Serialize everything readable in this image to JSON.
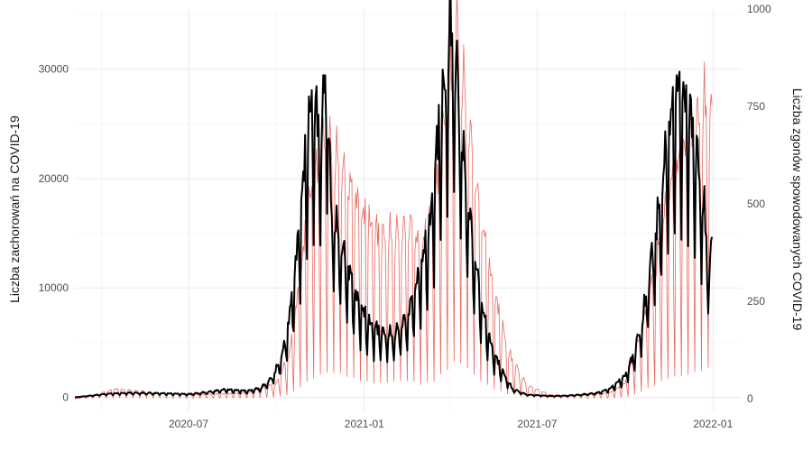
{
  "chart_data": {
    "type": "line",
    "title": "",
    "grid": true,
    "legend": "none",
    "x_axis": {
      "type": "date",
      "range": [
        "2020-03-04",
        "2022-01-31"
      ],
      "ticks": [
        {
          "value": "2020-07-01",
          "label": "2020-07"
        },
        {
          "value": "2021-01-01",
          "label": "2021-01"
        },
        {
          "value": "2021-07-01",
          "label": "2021-07"
        },
        {
          "value": "2022-01-01",
          "label": "2022-01"
        }
      ]
    },
    "y_left": {
      "label": "Liczba zachorowań na COVID-19",
      "range": [
        -1200,
        35500
      ],
      "ticks": [
        0,
        10000,
        20000,
        30000
      ],
      "tick_labels": [
        "0",
        "10000",
        "20000",
        "30000"
      ]
    },
    "y_right": {
      "label": "Liczba zgonów spowodowanych COVID-19",
      "range": [
        -30,
        1000
      ],
      "ticks": [
        0,
        250,
        500,
        750,
        1000
      ],
      "tick_labels": [
        "0",
        "250",
        "500",
        "750",
        "1000"
      ]
    },
    "series": [
      {
        "axis": "left",
        "color": "#000000",
        "weekly_dip": 0.45,
        "points": [
          [
            "2020-03-04",
            0
          ],
          [
            "2020-03-20",
            150
          ],
          [
            "2020-04-10",
            350
          ],
          [
            "2020-05-01",
            420
          ],
          [
            "2020-06-01",
            380
          ],
          [
            "2020-07-01",
            300
          ],
          [
            "2020-07-20",
            480
          ],
          [
            "2020-08-08",
            730
          ],
          [
            "2020-09-01",
            600
          ],
          [
            "2020-09-15",
            900
          ],
          [
            "2020-09-25",
            1700
          ],
          [
            "2020-10-03",
            3000
          ],
          [
            "2020-10-10",
            5000
          ],
          [
            "2020-10-17",
            9000
          ],
          [
            "2020-10-24",
            15000
          ],
          [
            "2020-10-31",
            22000
          ],
          [
            "2020-11-07",
            27800
          ],
          [
            "2020-11-14",
            25500
          ],
          [
            "2020-11-18",
            25000
          ],
          [
            "2020-11-22",
            32700
          ],
          [
            "2020-11-27",
            18000
          ],
          [
            "2020-12-05",
            15000
          ],
          [
            "2020-12-15",
            12000
          ],
          [
            "2020-12-25",
            9000
          ],
          [
            "2021-01-05",
            7000
          ],
          [
            "2021-01-20",
            6000
          ],
          [
            "2021-02-01",
            5800
          ],
          [
            "2021-02-15",
            7500
          ],
          [
            "2021-03-01",
            12000
          ],
          [
            "2021-03-10",
            15500
          ],
          [
            "2021-03-20",
            25000
          ],
          [
            "2021-03-28",
            30000
          ],
          [
            "2021-04-01",
            35200
          ],
          [
            "2021-04-08",
            30000
          ],
          [
            "2021-04-15",
            22000
          ],
          [
            "2021-04-25",
            14000
          ],
          [
            "2021-05-05",
            8000
          ],
          [
            "2021-05-15",
            4500
          ],
          [
            "2021-05-25",
            2500
          ],
          [
            "2021-06-05",
            800
          ],
          [
            "2021-06-20",
            250
          ],
          [
            "2021-07-15",
            120
          ],
          [
            "2021-08-01",
            150
          ],
          [
            "2021-08-15",
            250
          ],
          [
            "2021-09-01",
            400
          ],
          [
            "2021-09-15",
            800
          ],
          [
            "2021-10-01",
            2000
          ],
          [
            "2021-10-10",
            4000
          ],
          [
            "2021-10-20",
            7500
          ],
          [
            "2021-10-31",
            14500
          ],
          [
            "2021-11-07",
            18000
          ],
          [
            "2021-11-14",
            24000
          ],
          [
            "2021-11-21",
            27000
          ],
          [
            "2021-11-25",
            28900
          ],
          [
            "2021-12-02",
            27500
          ],
          [
            "2021-12-09",
            26000
          ],
          [
            "2021-12-16",
            22000
          ],
          [
            "2021-12-23",
            17000
          ],
          [
            "2021-12-28",
            12000
          ],
          [
            "2021-12-31",
            14000
          ]
        ]
      },
      {
        "axis": "right",
        "color": "#e8685e",
        "weekly_dip": 0.9,
        "points": [
          [
            "2020-03-04",
            0
          ],
          [
            "2020-03-25",
            10
          ],
          [
            "2020-04-15",
            25
          ],
          [
            "2020-05-01",
            22
          ],
          [
            "2020-06-01",
            15
          ],
          [
            "2020-07-01",
            10
          ],
          [
            "2020-08-01",
            12
          ],
          [
            "2020-09-01",
            15
          ],
          [
            "2020-10-01",
            40
          ],
          [
            "2020-10-15",
            120
          ],
          [
            "2020-10-25",
            300
          ],
          [
            "2020-11-05",
            520
          ],
          [
            "2020-11-20",
            670
          ],
          [
            "2020-12-01",
            640
          ],
          [
            "2020-12-15",
            560
          ],
          [
            "2021-01-01",
            470
          ],
          [
            "2021-01-20",
            420
          ],
          [
            "2021-02-05",
            430
          ],
          [
            "2021-02-20",
            450
          ],
          [
            "2021-03-01",
            380
          ],
          [
            "2021-03-15",
            500
          ],
          [
            "2021-03-25",
            700
          ],
          [
            "2021-04-08",
            960
          ],
          [
            "2021-04-20",
            720
          ],
          [
            "2021-05-01",
            500
          ],
          [
            "2021-05-15",
            300
          ],
          [
            "2021-06-01",
            120
          ],
          [
            "2021-06-20",
            35
          ],
          [
            "2021-07-15",
            10
          ],
          [
            "2021-08-15",
            8
          ],
          [
            "2021-09-15",
            15
          ],
          [
            "2021-10-01",
            40
          ],
          [
            "2021-10-15",
            150
          ],
          [
            "2021-11-01",
            330
          ],
          [
            "2021-11-15",
            530
          ],
          [
            "2021-12-01",
            640
          ],
          [
            "2021-12-15",
            720
          ],
          [
            "2021-12-25",
            770
          ],
          [
            "2021-12-31",
            720
          ]
        ]
      }
    ]
  }
}
